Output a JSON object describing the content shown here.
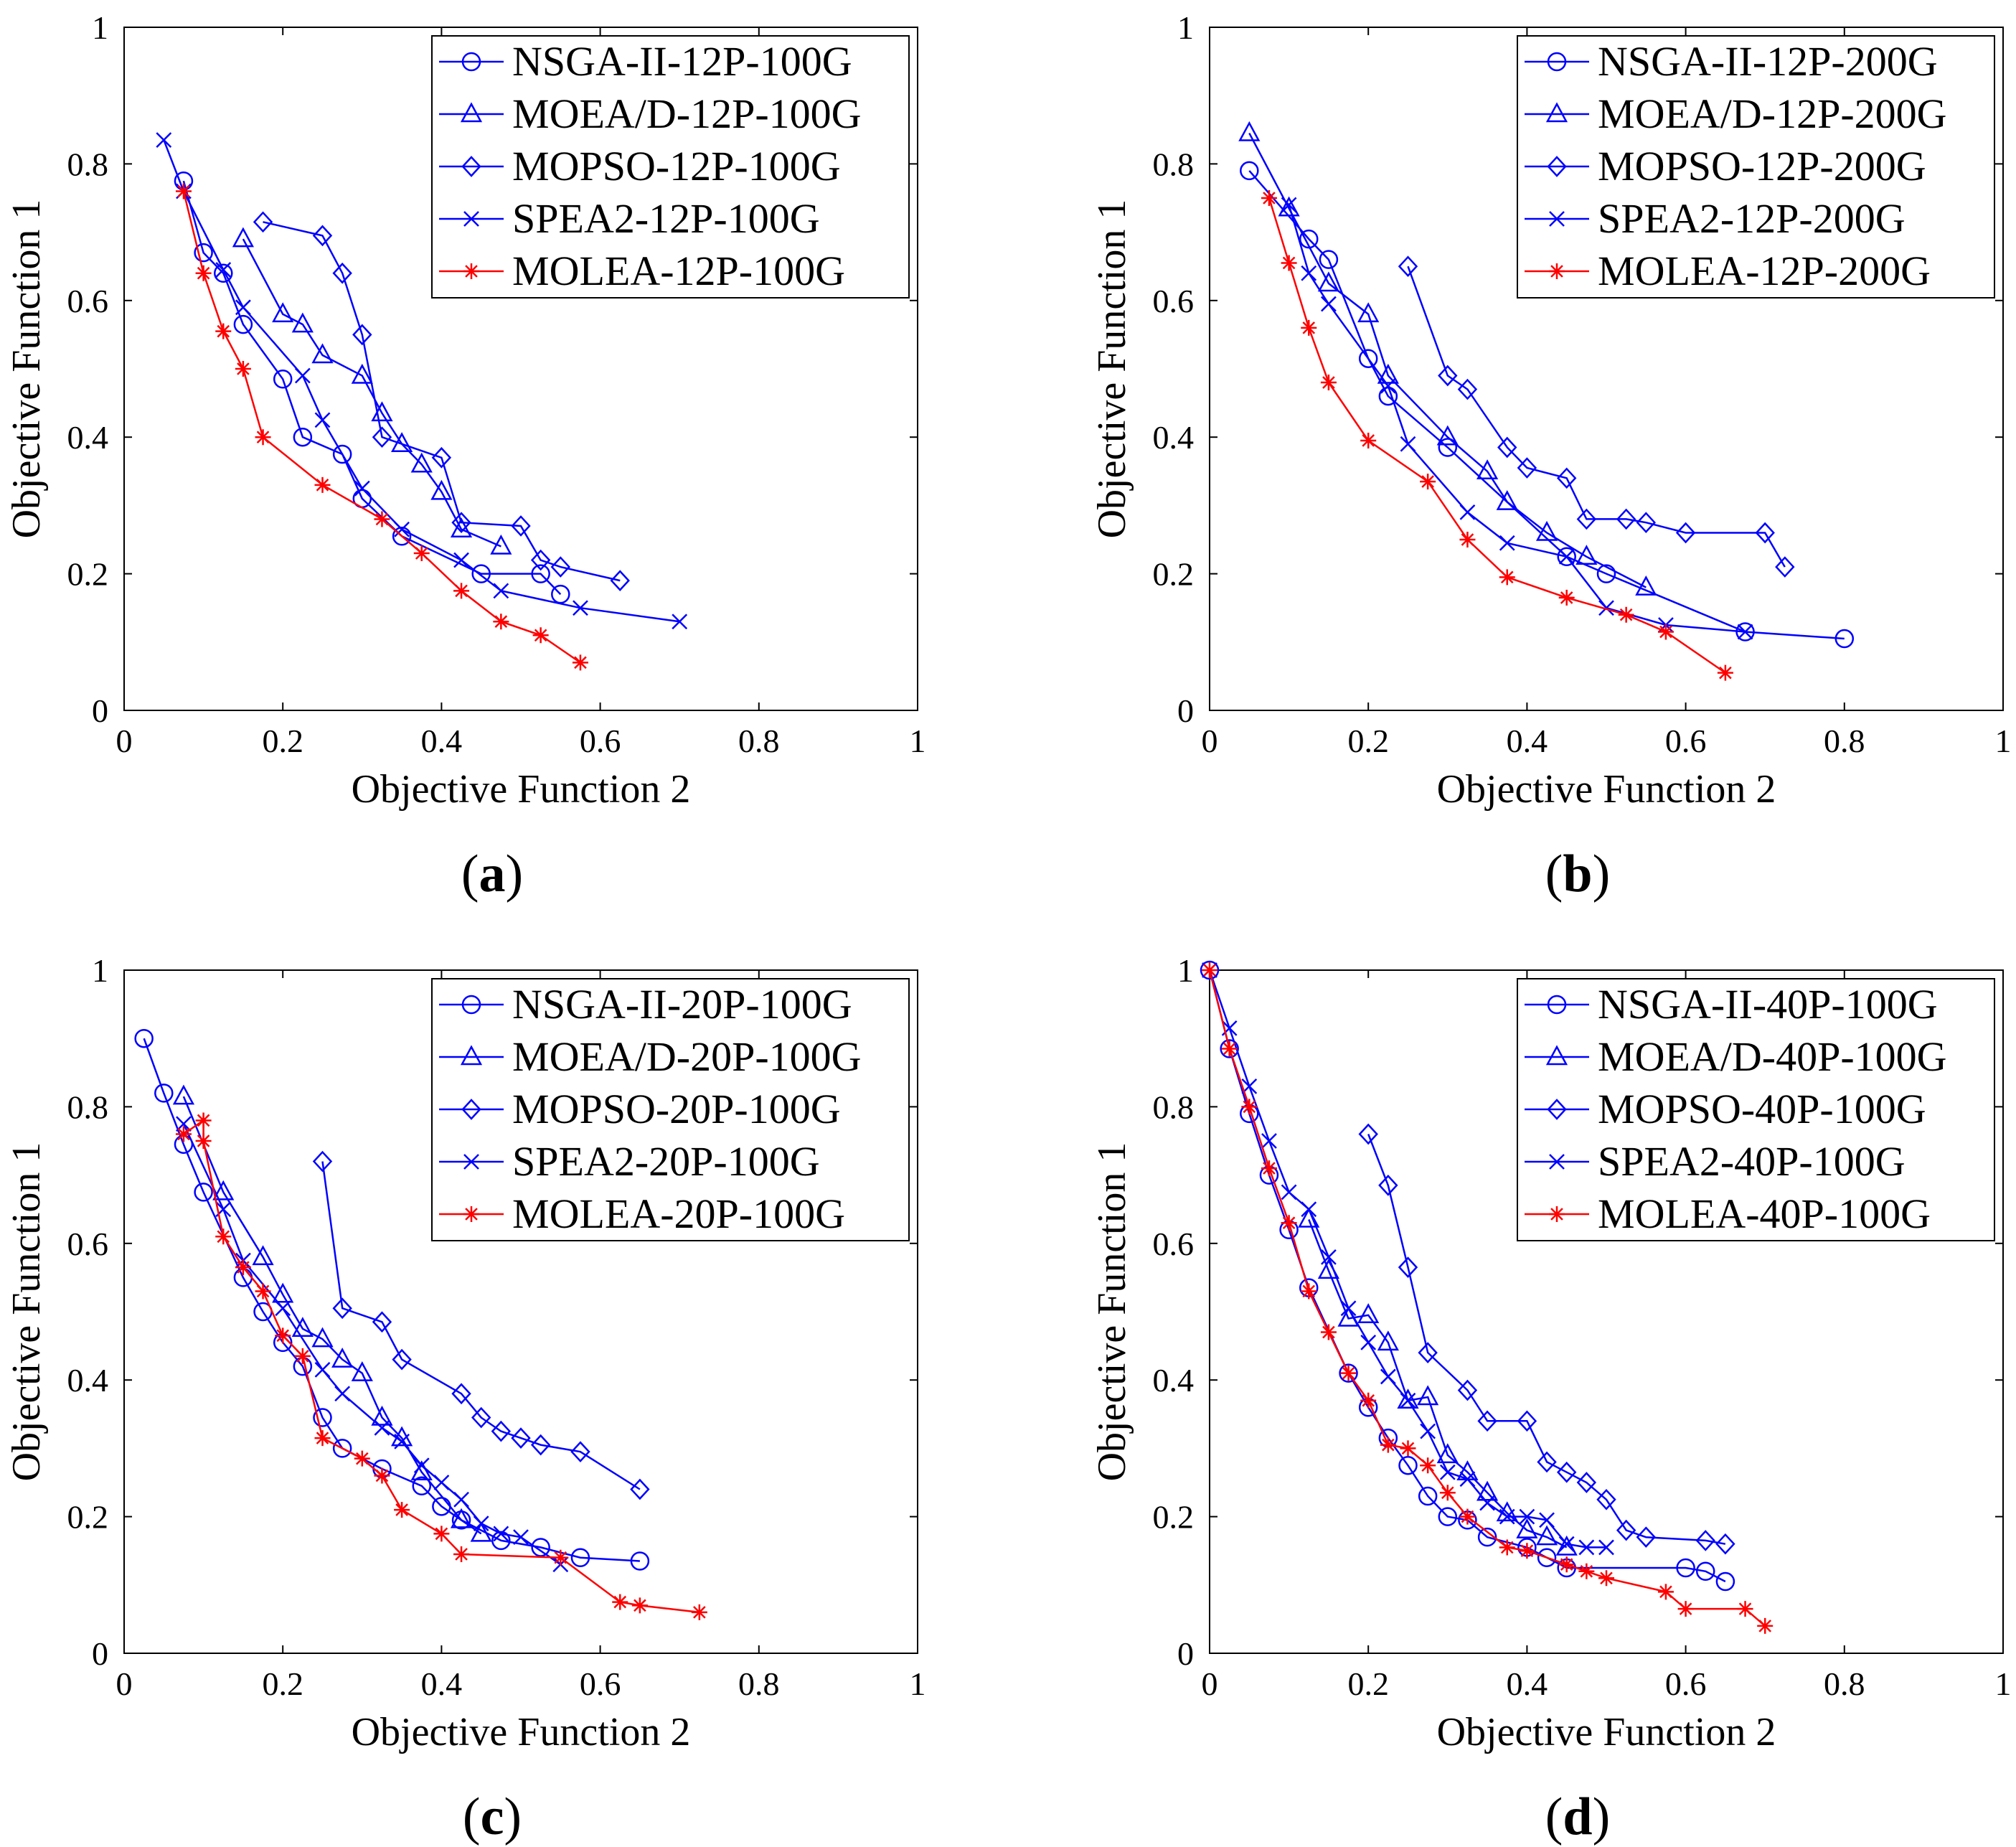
{
  "colors": {
    "blue": "#0000ff",
    "red": "#ff0000",
    "axis": "#000000"
  },
  "chart_data": [
    {
      "type": "line",
      "caption": "a",
      "xlabel": "Objective Function 2",
      "ylabel": "Objective Function 1",
      "xlim": [
        0,
        1
      ],
      "ylim": [
        0,
        1
      ],
      "xticks": [
        "0",
        "0.2",
        "0.4",
        "0.6",
        "0.8",
        "1"
      ],
      "yticks": [
        "0",
        "0.2",
        "0.4",
        "0.6",
        "0.8",
        "1"
      ],
      "legend_position": "top-right",
      "series": [
        {
          "name": "NSGA-II-12P-100G",
          "marker": "circle",
          "color": "#0000ff",
          "x": [
            0.075,
            0.1,
            0.125,
            0.15,
            0.2,
            0.225,
            0.275,
            0.3,
            0.35,
            0.45,
            0.525,
            0.55
          ],
          "y": [
            0.775,
            0.67,
            0.64,
            0.565,
            0.485,
            0.4,
            0.375,
            0.31,
            0.255,
            0.2,
            0.2,
            0.17
          ]
        },
        {
          "name": "MOEA/D-12P-100G",
          "marker": "triangle",
          "color": "#0000ff",
          "x": [
            0.15,
            0.2,
            0.225,
            0.25,
            0.3,
            0.325,
            0.35,
            0.375,
            0.4,
            0.425,
            0.475
          ],
          "y": [
            0.69,
            0.58,
            0.565,
            0.52,
            0.49,
            0.435,
            0.39,
            0.36,
            0.32,
            0.265,
            0.24
          ]
        },
        {
          "name": "MOPSO-12P-100G",
          "marker": "diamond",
          "color": "#0000ff",
          "x": [
            0.175,
            0.25,
            0.275,
            0.3,
            0.325,
            0.4,
            0.425,
            0.5,
            0.525,
            0.55,
            0.625
          ],
          "y": [
            0.715,
            0.695,
            0.64,
            0.55,
            0.4,
            0.37,
            0.275,
            0.27,
            0.22,
            0.21,
            0.19
          ]
        },
        {
          "name": "SPEA2-12P-100G",
          "marker": "x",
          "color": "#0000ff",
          "x": [
            0.05,
            0.075,
            0.125,
            0.15,
            0.225,
            0.25,
            0.3,
            0.35,
            0.425,
            0.475,
            0.575,
            0.7
          ],
          "y": [
            0.835,
            0.76,
            0.645,
            0.59,
            0.49,
            0.425,
            0.325,
            0.265,
            0.22,
            0.175,
            0.15,
            0.13
          ]
        },
        {
          "name": "MOLEA-12P-100G",
          "marker": "star",
          "color": "#ff0000",
          "x": [
            0.075,
            0.1,
            0.125,
            0.15,
            0.175,
            0.25,
            0.325,
            0.375,
            0.425,
            0.475,
            0.525,
            0.575
          ],
          "y": [
            0.76,
            0.64,
            0.555,
            0.5,
            0.4,
            0.33,
            0.28,
            0.23,
            0.175,
            0.13,
            0.11,
            0.07
          ]
        }
      ]
    },
    {
      "type": "line",
      "caption": "b",
      "xlabel": "Objective Function 2",
      "ylabel": "Objective Function 1",
      "xlim": [
        0,
        1
      ],
      "ylim": [
        0,
        1
      ],
      "xticks": [
        "0",
        "0.2",
        "0.4",
        "0.6",
        "0.8",
        "1"
      ],
      "yticks": [
        "0",
        "0.2",
        "0.4",
        "0.6",
        "0.8",
        "1"
      ],
      "legend_position": "top-right",
      "series": [
        {
          "name": "NSGA-II-12P-200G",
          "marker": "circle",
          "color": "#0000ff",
          "x": [
            0.05,
            0.125,
            0.15,
            0.2,
            0.225,
            0.3,
            0.45,
            0.5,
            0.675,
            0.8
          ],
          "y": [
            0.79,
            0.69,
            0.66,
            0.515,
            0.46,
            0.385,
            0.225,
            0.2,
            0.115,
            0.105
          ]
        },
        {
          "name": "MOEA/D-12P-200G",
          "marker": "triangle",
          "color": "#0000ff",
          "x": [
            0.05,
            0.1,
            0.15,
            0.2,
            0.225,
            0.3,
            0.35,
            0.375,
            0.425,
            0.475,
            0.55
          ],
          "y": [
            0.845,
            0.735,
            0.625,
            0.58,
            0.49,
            0.4,
            0.35,
            0.305,
            0.26,
            0.225,
            0.18
          ]
        },
        {
          "name": "MOPSO-12P-200G",
          "marker": "diamond",
          "color": "#0000ff",
          "x": [
            0.25,
            0.3,
            0.325,
            0.375,
            0.4,
            0.45,
            0.475,
            0.525,
            0.55,
            0.6,
            0.7,
            0.725
          ],
          "y": [
            0.65,
            0.49,
            0.47,
            0.385,
            0.355,
            0.34,
            0.28,
            0.28,
            0.275,
            0.26,
            0.26,
            0.21
          ]
        },
        {
          "name": "SPEA2-12P-200G",
          "marker": "x",
          "color": "#0000ff",
          "x": [
            0.1,
            0.125,
            0.15,
            0.225,
            0.25,
            0.325,
            0.375,
            0.45,
            0.5,
            0.575,
            0.675
          ],
          "y": [
            0.74,
            0.64,
            0.595,
            0.475,
            0.39,
            0.29,
            0.245,
            0.225,
            0.15,
            0.125,
            0.115
          ]
        },
        {
          "name": "MOLEA-12P-200G",
          "marker": "star",
          "color": "#ff0000",
          "x": [
            0.075,
            0.1,
            0.125,
            0.15,
            0.2,
            0.275,
            0.325,
            0.375,
            0.45,
            0.525,
            0.575,
            0.65
          ],
          "y": [
            0.75,
            0.655,
            0.56,
            0.48,
            0.395,
            0.335,
            0.25,
            0.195,
            0.165,
            0.14,
            0.115,
            0.055
          ]
        }
      ]
    },
    {
      "type": "line",
      "caption": "c",
      "xlabel": "Objective Function 2",
      "ylabel": "Objective Function 1",
      "xlim": [
        0,
        1
      ],
      "ylim": [
        0,
        1
      ],
      "xticks": [
        "0",
        "0.2",
        "0.4",
        "0.6",
        "0.8",
        "1"
      ],
      "yticks": [
        "0",
        "0.2",
        "0.4",
        "0.6",
        "0.8",
        "1"
      ],
      "legend_position": "top-right",
      "series": [
        {
          "name": "NSGA-II-20P-100G",
          "marker": "circle",
          "color": "#0000ff",
          "x": [
            0.025,
            0.05,
            0.075,
            0.1,
            0.15,
            0.175,
            0.2,
            0.225,
            0.25,
            0.275,
            0.325,
            0.375,
            0.4,
            0.425,
            0.475,
            0.525,
            0.575,
            0.65
          ],
          "y": [
            0.9,
            0.82,
            0.745,
            0.675,
            0.55,
            0.5,
            0.455,
            0.42,
            0.345,
            0.3,
            0.27,
            0.245,
            0.215,
            0.195,
            0.165,
            0.155,
            0.14,
            0.135
          ]
        },
        {
          "name": "MOEA/D-20P-100G",
          "marker": "triangle",
          "color": "#0000ff",
          "x": [
            0.075,
            0.125,
            0.175,
            0.2,
            0.225,
            0.25,
            0.275,
            0.3,
            0.325,
            0.35,
            0.375,
            0.425,
            0.45
          ],
          "y": [
            0.815,
            0.675,
            0.58,
            0.525,
            0.475,
            0.46,
            0.43,
            0.41,
            0.345,
            0.315,
            0.265,
            0.195,
            0.175
          ]
        },
        {
          "name": "MOPSO-20P-100G",
          "marker": "diamond",
          "color": "#0000ff",
          "x": [
            0.25,
            0.275,
            0.325,
            0.35,
            0.425,
            0.45,
            0.475,
            0.5,
            0.525,
            0.575,
            0.65
          ],
          "y": [
            0.72,
            0.505,
            0.485,
            0.43,
            0.38,
            0.345,
            0.325,
            0.315,
            0.305,
            0.295,
            0.24
          ]
        },
        {
          "name": "SPEA2-20P-100G",
          "marker": "x",
          "color": "#0000ff",
          "x": [
            0.075,
            0.125,
            0.15,
            0.2,
            0.25,
            0.275,
            0.325,
            0.35,
            0.375,
            0.4,
            0.425,
            0.45,
            0.475,
            0.5,
            0.55
          ],
          "y": [
            0.775,
            0.65,
            0.575,
            0.505,
            0.415,
            0.38,
            0.33,
            0.31,
            0.275,
            0.25,
            0.225,
            0.19,
            0.175,
            0.17,
            0.13
          ]
        },
        {
          "name": "MOLEA-20P-100G",
          "marker": "star",
          "color": "#ff0000",
          "x": [
            0.075,
            0.1,
            0.1,
            0.125,
            0.15,
            0.175,
            0.2,
            0.225,
            0.25,
            0.3,
            0.325,
            0.35,
            0.4,
            0.425,
            0.55,
            0.625,
            0.65,
            0.725
          ],
          "y": [
            0.76,
            0.78,
            0.75,
            0.61,
            0.565,
            0.53,
            0.465,
            0.435,
            0.315,
            0.285,
            0.26,
            0.21,
            0.175,
            0.145,
            0.14,
            0.075,
            0.07,
            0.06
          ]
        }
      ]
    },
    {
      "type": "line",
      "caption": "d",
      "xlabel": "Objective Function 2",
      "ylabel": "Objective Function 1",
      "xlim": [
        0,
        1
      ],
      "ylim": [
        0,
        1
      ],
      "xticks": [
        "0",
        "0.2",
        "0.4",
        "0.6",
        "0.8",
        "1"
      ],
      "yticks": [
        "0",
        "0.2",
        "0.4",
        "0.6",
        "0.8",
        "1"
      ],
      "legend_position": "top-right",
      "series": [
        {
          "name": "NSGA-II-40P-100G",
          "marker": "circle",
          "color": "#0000ff",
          "x": [
            0,
            0.025,
            0.05,
            0.075,
            0.1,
            0.125,
            0.175,
            0.2,
            0.225,
            0.25,
            0.275,
            0.3,
            0.325,
            0.35,
            0.4,
            0.425,
            0.45,
            0.6,
            0.625,
            0.65
          ],
          "y": [
            1.0,
            0.885,
            0.79,
            0.7,
            0.62,
            0.535,
            0.41,
            0.36,
            0.315,
            0.275,
            0.23,
            0.2,
            0.195,
            0.17,
            0.155,
            0.14,
            0.125,
            0.125,
            0.12,
            0.105
          ]
        },
        {
          "name": "MOEA/D-40P-100G",
          "marker": "triangle",
          "color": "#0000ff",
          "x": [
            0.125,
            0.15,
            0.175,
            0.2,
            0.225,
            0.25,
            0.275,
            0.3,
            0.325,
            0.35,
            0.375,
            0.4,
            0.425,
            0.45
          ],
          "y": [
            0.635,
            0.56,
            0.49,
            0.495,
            0.455,
            0.37,
            0.375,
            0.29,
            0.265,
            0.235,
            0.205,
            0.18,
            0.17,
            0.155
          ]
        },
        {
          "name": "MOPSO-40P-100G",
          "marker": "diamond",
          "color": "#0000ff",
          "x": [
            0.2,
            0.225,
            0.25,
            0.275,
            0.325,
            0.35,
            0.4,
            0.425,
            0.45,
            0.475,
            0.5,
            0.525,
            0.55,
            0.625,
            0.65
          ],
          "y": [
            0.76,
            0.685,
            0.565,
            0.44,
            0.385,
            0.34,
            0.34,
            0.28,
            0.265,
            0.25,
            0.225,
            0.18,
            0.17,
            0.165,
            0.16
          ]
        },
        {
          "name": "SPEA2-40P-100G",
          "marker": "x",
          "color": "#0000ff",
          "x": [
            0,
            0.025,
            0.05,
            0.075,
            0.1,
            0.125,
            0.15,
            0.175,
            0.2,
            0.225,
            0.25,
            0.275,
            0.3,
            0.325,
            0.35,
            0.375,
            0.4,
            0.425,
            0.45,
            0.475,
            0.5
          ],
          "y": [
            1.0,
            0.915,
            0.83,
            0.75,
            0.675,
            0.65,
            0.58,
            0.505,
            0.455,
            0.405,
            0.37,
            0.325,
            0.265,
            0.255,
            0.22,
            0.2,
            0.2,
            0.195,
            0.16,
            0.155,
            0.155
          ]
        },
        {
          "name": "MOLEA-40P-100G",
          "marker": "star",
          "color": "#ff0000",
          "x": [
            0,
            0.025,
            0.05,
            0.075,
            0.1,
            0.125,
            0.15,
            0.175,
            0.2,
            0.225,
            0.25,
            0.275,
            0.3,
            0.325,
            0.375,
            0.4,
            0.45,
            0.475,
            0.5,
            0.575,
            0.6,
            0.675,
            0.7
          ],
          "y": [
            1.0,
            0.885,
            0.8,
            0.71,
            0.63,
            0.53,
            0.47,
            0.41,
            0.37,
            0.305,
            0.3,
            0.275,
            0.235,
            0.2,
            0.155,
            0.15,
            0.13,
            0.12,
            0.11,
            0.09,
            0.065,
            0.065,
            0.04
          ]
        }
      ]
    }
  ]
}
